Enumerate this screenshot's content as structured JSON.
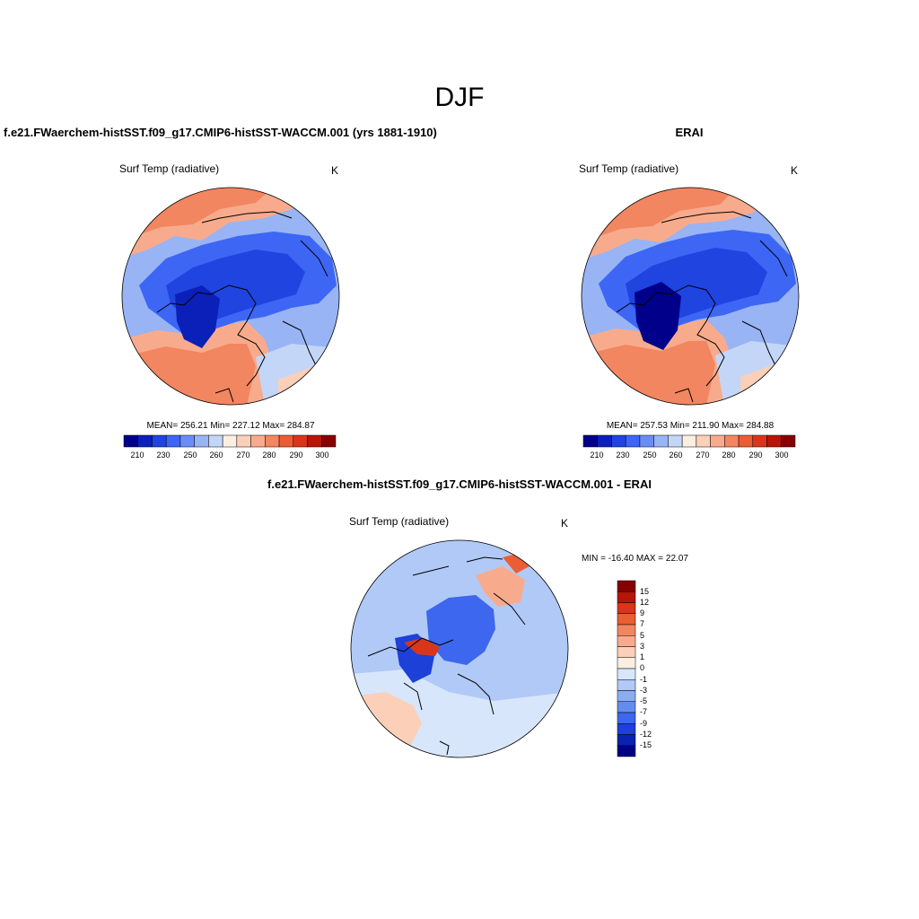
{
  "figure": {
    "title": "DJF"
  },
  "panels": {
    "model": {
      "title": "f.e21.FWaerchem-histSST.f09_g17.CMIP6-histSST-WACCM.001 (yrs 1881-1910)",
      "variable": "Surf Temp (radiative)",
      "units": "K",
      "stats": "MEAN= 256.21  Min= 227.12  Max= 284.87"
    },
    "obs": {
      "title": "ERAI",
      "variable": "Surf Temp (radiative)",
      "units": "K",
      "stats": "MEAN= 257.53  Min= 211.90  Max= 284.88"
    },
    "diff": {
      "title": "f.e21.FWaerchem-histSST.f09_g17.CMIP6-histSST-WACCM.001 - ERAI",
      "variable": "Surf Temp (radiative)",
      "units": "K",
      "stats": "MIN = -16.40 MAX =  22.07"
    }
  },
  "colorbars": {
    "absolute": {
      "tick_labels": [
        "210",
        "230",
        "250",
        "260",
        "270",
        "280",
        "290",
        "300"
      ],
      "colors": [
        "#00008a",
        "#0b20b8",
        "#1f44e0",
        "#3d66f5",
        "#6a8df5",
        "#98b4f4",
        "#c3d6f8",
        "#fbefe4",
        "#fbcfb8",
        "#f8ab8c",
        "#f28660",
        "#ea5e33",
        "#d8361a",
        "#b51607",
        "#870000"
      ]
    },
    "difference": {
      "levels": [
        "15",
        "12",
        "9",
        "7",
        "5",
        "3",
        "1",
        "0",
        "-1",
        "-3",
        "-5",
        "-7",
        "-9",
        "-12",
        "-15"
      ],
      "colors": [
        "#870000",
        "#b51607",
        "#d8361a",
        "#ea5e33",
        "#f28660",
        "#f8ab8c",
        "#fbcfb8",
        "#fbefe4",
        "#d7e6fb",
        "#b1c9f6",
        "#8badf2",
        "#638cf0",
        "#3c67ee",
        "#1c40d8",
        "#0a22b0",
        "#00008a"
      ]
    }
  },
  "map_colors": {
    "ocean_warm": "#f28660",
    "ocean_mild": "#f8ab8c",
    "cold": "#3d66f5",
    "colder": "#1f44e0",
    "light_blue": "#98b4f4",
    "pale_blue": "#c3d6f8",
    "diff_background": "#b1c9f6",
    "diff_ocean": "#d7e6fb",
    "diff_cold_core": "#3c67ee",
    "diff_warm": "#f8ab8c"
  }
}
